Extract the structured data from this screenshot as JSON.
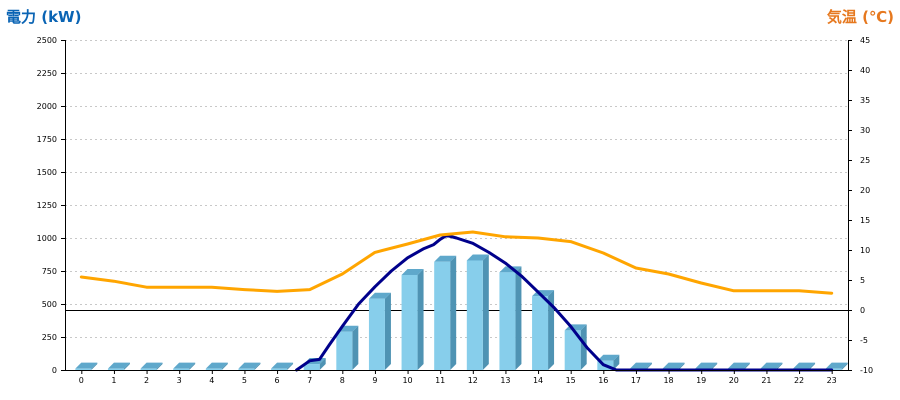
{
  "chart_data": {
    "type": "bar",
    "colors": {
      "power_axis": "#0a64b4",
      "temp_axis": "#e6781e",
      "bar_front": "#87ceeb",
      "bar_side": "#4f93b3",
      "bar_top": "#5fa8cb",
      "power_line": "#00008b",
      "temp_line": "#ffa500",
      "grid": "#c8c8c8"
    },
    "x_ticks": [
      "0",
      "1",
      "2",
      "3",
      "4",
      "5",
      "6",
      "7",
      "8",
      "9",
      "10",
      "11",
      "12",
      "13",
      "14",
      "15",
      "16",
      "17",
      "18",
      "19",
      "20",
      "21",
      "22",
      "23"
    ],
    "y_left": {
      "label": "電力 (kW)",
      "range": [
        0,
        2500
      ],
      "ticks": [
        "0",
        "250",
        "500",
        "750",
        "1000",
        "1250",
        "1500",
        "1750",
        "2000",
        "2250",
        "2500"
      ]
    },
    "y_right": {
      "label": "気温 (℃)",
      "range": [
        -10,
        45
      ],
      "ticks": [
        "-10",
        "-5",
        "0",
        "5",
        "10",
        "15",
        "20",
        "25",
        "30",
        "35",
        "40",
        "45"
      ]
    },
    "grid": true,
    "reference_line_temp": 0,
    "series": [
      {
        "type": "bar",
        "axis": "left",
        "x": [
          0,
          1,
          2,
          3,
          4,
          5,
          6,
          7,
          8,
          9,
          10,
          11,
          12,
          13,
          14,
          15,
          16,
          17,
          18,
          19,
          20,
          21,
          22,
          23
        ],
        "values": [
          10,
          10,
          10,
          10,
          10,
          10,
          10,
          45,
          290,
          540,
          720,
          820,
          830,
          740,
          560,
          300,
          70,
          10,
          10,
          10,
          10,
          10,
          10,
          10
        ]
      },
      {
        "type": "line",
        "axis": "left",
        "x": [
          6.6,
          7,
          7.3,
          7.6,
          8,
          8.5,
          9,
          9.5,
          10,
          10.5,
          10.8,
          11,
          11.2,
          11.5,
          12,
          12.5,
          13,
          13.5,
          14,
          14.5,
          15,
          15.5,
          16,
          16.4,
          16.8,
          17,
          18,
          19,
          20,
          21,
          22,
          23
        ],
        "values": [
          0,
          70,
          80,
          190,
          330,
          500,
          630,
          750,
          850,
          920,
          950,
          990,
          1020,
          1000,
          960,
          890,
          810,
          710,
          590,
          470,
          330,
          170,
          40,
          0,
          0,
          0,
          0,
          0,
          0,
          0,
          0,
          0
        ]
      },
      {
        "type": "line",
        "axis": "right",
        "x": [
          0,
          1,
          2,
          3,
          4,
          5,
          6,
          7,
          8,
          9,
          10,
          11,
          12,
          13,
          14,
          15,
          16,
          17,
          18,
          19,
          20,
          21,
          22,
          23
        ],
        "values": [
          5.5,
          4.8,
          3.8,
          3.8,
          3.8,
          3.4,
          3.1,
          3.4,
          6,
          9.6,
          11,
          12.5,
          13,
          12.2,
          12,
          11.4,
          9.5,
          7,
          6,
          4.5,
          3.2,
          3.2,
          3.2,
          2.8
        ]
      }
    ]
  }
}
